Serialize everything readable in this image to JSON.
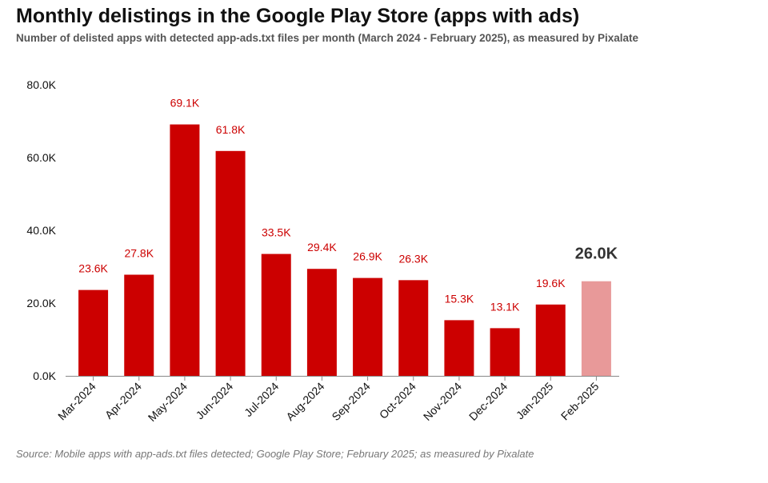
{
  "title": "Monthly delistings in the Google Play Store (apps with ads)",
  "subtitle": "Number of delisted apps with detected app-ads.txt files per month (March 2024 - February 2025), as measured by Pixalate",
  "source": "Source: Mobile apps with app-ads.txt files detected; Google Play Store; February 2025; as measured by Pixalate",
  "colors": {
    "bar": "#cc0000",
    "bar_highlight": "#e89999",
    "label": "#cc0000",
    "label_highlight": "#333333",
    "axis": "#888888",
    "text": "#111111"
  },
  "chart_data": {
    "type": "bar",
    "title": "Monthly delistings in the Google Play Store (apps with ads)",
    "xlabel": "",
    "ylabel": "",
    "ylim": [
      0,
      80
    ],
    "yticks": [
      0,
      20,
      40,
      60,
      80
    ],
    "ytick_labels": [
      "0.0K",
      "20.0K",
      "40.0K",
      "60.0K",
      "80.0K"
    ],
    "grid": false,
    "categories": [
      "Mar-2024",
      "Apr-2024",
      "May-2024",
      "Jun-2024",
      "Jul-2024",
      "Aug-2024",
      "Sep-2024",
      "Oct-2024",
      "Nov-2024",
      "Dec-2024",
      "Jan-2025",
      "Feb-2025"
    ],
    "values": [
      23.6,
      27.8,
      69.1,
      61.8,
      33.5,
      29.4,
      26.9,
      26.3,
      15.3,
      13.1,
      19.6,
      26.0
    ],
    "data_labels": [
      "23.6K",
      "27.8K",
      "69.1K",
      "61.8K",
      "33.5K",
      "29.4K",
      "26.9K",
      "26.3K",
      "15.3K",
      "13.1K",
      "19.6K",
      "26.0K"
    ],
    "highlight_index": 11
  }
}
